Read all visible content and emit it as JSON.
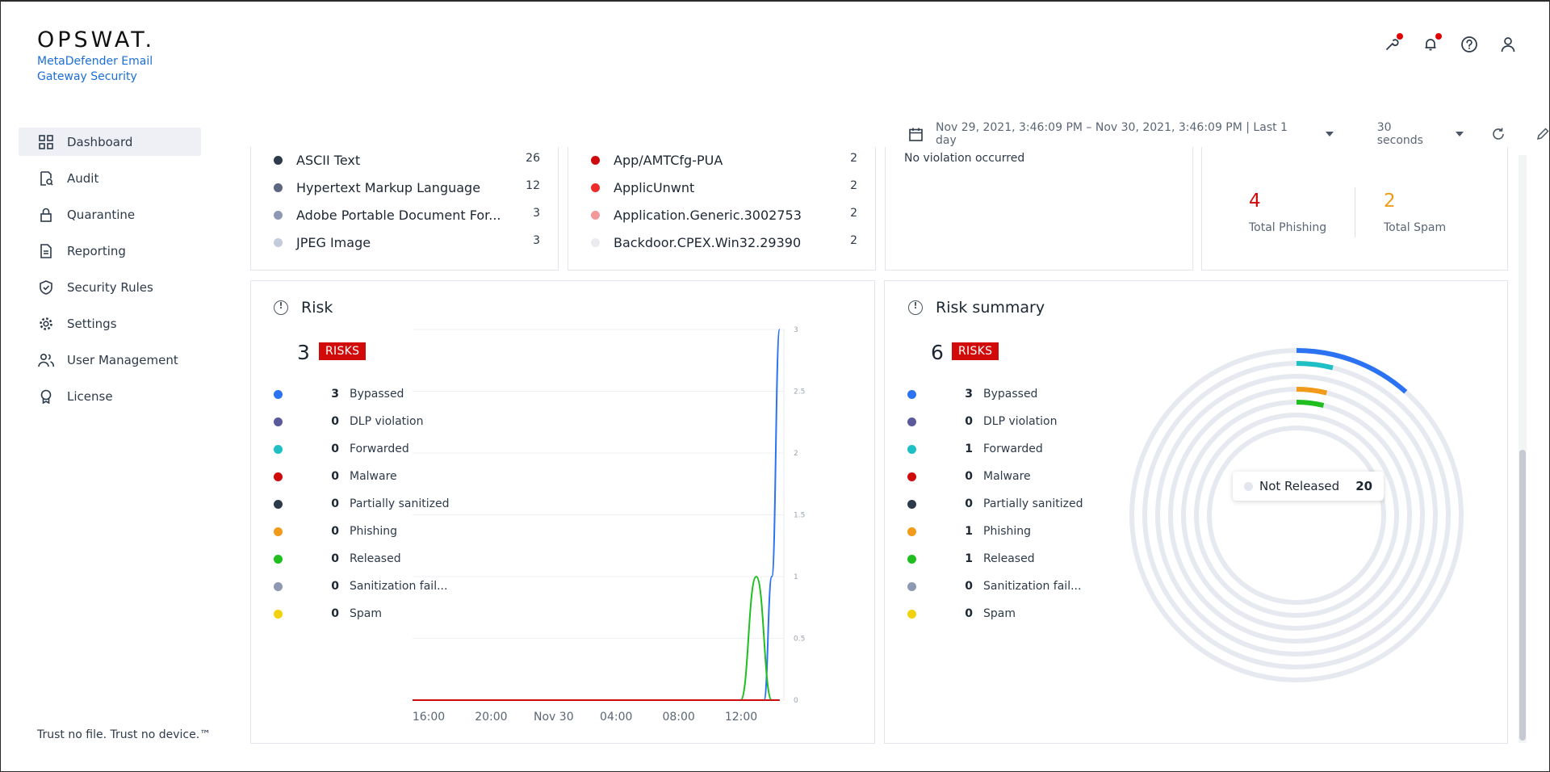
{
  "brand": {
    "logo": "OPSWAT.",
    "product": "MetaDefender Email Gateway Security"
  },
  "top_icons": [
    "wrench-icon",
    "bell-icon",
    "help-icon",
    "user-icon"
  ],
  "sidebar": {
    "items": [
      {
        "label": "Dashboard",
        "icon": "grid-icon",
        "active": true
      },
      {
        "label": "Audit",
        "icon": "audit-icon"
      },
      {
        "label": "Quarantine",
        "icon": "lock-icon"
      },
      {
        "label": "Reporting",
        "icon": "document-icon"
      },
      {
        "label": "Security Rules",
        "icon": "shield-check-icon"
      },
      {
        "label": "Settings",
        "icon": "gear-icon"
      },
      {
        "label": "User Management",
        "icon": "users-icon"
      },
      {
        "label": "License",
        "icon": "badge-icon"
      }
    ],
    "tagline": "Trust no file. Trust no device.™"
  },
  "filter": {
    "date_range": "Nov 29, 2021, 3:46:09 PM – Nov 30, 2021, 3:46:09 PM | Last 1 day",
    "refresh_interval": "30 seconds"
  },
  "file_types": {
    "items": [
      {
        "label": "ASCII Text",
        "value": "26",
        "color": "#2d3a4a"
      },
      {
        "label": "Hypertext Markup Language",
        "value": "12",
        "color": "#5c6680"
      },
      {
        "label": "Adobe Portable Document For...",
        "value": "3",
        "color": "#8d98b3"
      },
      {
        "label": "JPEG Image",
        "value": "3",
        "color": "#c3cbdd"
      }
    ]
  },
  "threats": {
    "items": [
      {
        "label": "App/AMTCfg-PUA",
        "value": "2",
        "color": "#cf0a0a"
      },
      {
        "label": "ApplicUnwnt",
        "value": "2",
        "color": "#ec2b2b"
      },
      {
        "label": "Application.Generic.3002753",
        "value": "2",
        "color": "#f29a9a"
      },
      {
        "label": "Backdoor.CPEX.Win32.29390",
        "value": "2",
        "color": "#e9ebef"
      }
    ]
  },
  "violations": {
    "message": "No violation occurred"
  },
  "phishing_spam": {
    "total_phishing": "4",
    "total_phishing_label": "Total Phishing",
    "total_spam": "2",
    "total_spam_label": "Total Spam",
    "phishing_color": "#cf0a0a",
    "spam_color": "#f29a1a"
  },
  "risk": {
    "title": "Risk",
    "count": "3",
    "badge": "RISKS",
    "legend": [
      {
        "value": "3",
        "label": "Bypassed",
        "color": "#2b73f2"
      },
      {
        "value": "0",
        "label": "DLP violation",
        "color": "#5a5a9a"
      },
      {
        "value": "0",
        "label": "Forwarded",
        "color": "#1fbfc6"
      },
      {
        "value": "0",
        "label": "Malware",
        "color": "#cf0a0a"
      },
      {
        "value": "0",
        "label": "Partially sanitized",
        "color": "#2d3a4a"
      },
      {
        "value": "0",
        "label": "Phishing",
        "color": "#f29a1a"
      },
      {
        "value": "0",
        "label": "Released",
        "color": "#1fbf1f"
      },
      {
        "value": "0",
        "label": "Sanitization fail...",
        "color": "#8d98b3"
      },
      {
        "value": "0",
        "label": "Spam",
        "color": "#f2d20f"
      }
    ]
  },
  "risk_summary": {
    "title": "Risk summary",
    "count": "6",
    "badge": "RISKS",
    "legend": [
      {
        "value": "3",
        "label": "Bypassed",
        "color": "#2b73f2"
      },
      {
        "value": "0",
        "label": "DLP violation",
        "color": "#5a5a9a"
      },
      {
        "value": "1",
        "label": "Forwarded",
        "color": "#1fbfc6"
      },
      {
        "value": "0",
        "label": "Malware",
        "color": "#cf0a0a"
      },
      {
        "value": "0",
        "label": "Partially sanitized",
        "color": "#2d3a4a"
      },
      {
        "value": "1",
        "label": "Phishing",
        "color": "#f29a1a"
      },
      {
        "value": "1",
        "label": "Released",
        "color": "#1fbf1f"
      },
      {
        "value": "0",
        "label": "Sanitization fail...",
        "color": "#8d98b3"
      },
      {
        "value": "0",
        "label": "Spam",
        "color": "#f2d20f"
      }
    ],
    "tooltip_label": "Not Released",
    "tooltip_value": "20"
  },
  "chart_data": [
    {
      "type": "line",
      "title": "",
      "x_tick_labels": [
        "16:00",
        "20:00",
        "Nov 30",
        "04:00",
        "08:00",
        "12:00"
      ],
      "y_tick_labels": [
        "0",
        "0.5",
        "1",
        "1.5",
        "2",
        "2.5",
        "3"
      ],
      "ylim": [
        0,
        3
      ],
      "grid": true,
      "series": [
        {
          "name": "Bypassed",
          "color": "#2b73f2",
          "x": [
            "16:00",
            "20:00",
            "Nov 30",
            "04:00",
            "08:00",
            "12:00",
            "13:30",
            "14:30",
            "15:00",
            "15:30"
          ],
          "values": [
            0,
            0,
            0,
            0,
            0,
            0,
            0,
            0,
            1,
            3
          ]
        },
        {
          "name": "Released",
          "color": "#1fbf1f",
          "x": [
            "16:00",
            "20:00",
            "Nov 30",
            "04:00",
            "08:00",
            "12:00",
            "13:00",
            "14:00",
            "15:00",
            "15:30"
          ],
          "values": [
            0,
            0,
            0,
            0,
            0,
            0,
            0,
            1,
            0,
            0
          ]
        },
        {
          "name": "Malware",
          "color": "#cf0a0a",
          "x": [
            "16:00",
            "15:30"
          ],
          "values": [
            0,
            0
          ]
        }
      ]
    },
    {
      "type": "pie",
      "title": "",
      "categories": [
        "Bypassed",
        "Forwarded",
        "Phishing",
        "Released",
        "Not Released"
      ],
      "values": [
        3,
        1,
        1,
        1,
        20
      ],
      "colors": [
        "#2b73f2",
        "#1fbfc6",
        "#f29a1a",
        "#1fbf1f",
        "#e3e6ed"
      ]
    }
  ]
}
